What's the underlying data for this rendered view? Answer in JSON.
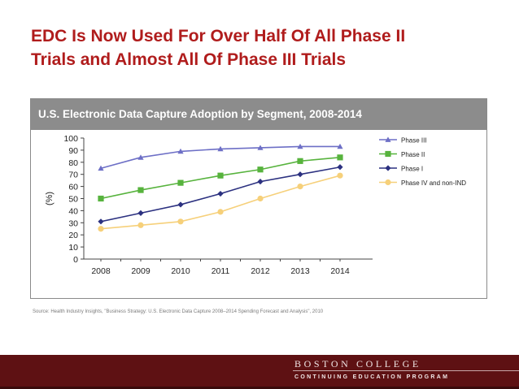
{
  "slide": {
    "title_line1": "EDC Is Now Used For Over Half Of All Phase II",
    "title_line2": "Trials and Almost All Of Phase III Trials",
    "source": "Source: Health Industry Insights, \"Business Strategy: U.S. Electronic Data Capture 2008–2014 Spending Forecast and Analysis\", 2010",
    "footer_name": "BOSTON COLLEGE",
    "footer_program": "CONTINUING EDUCATION PROGRAM"
  },
  "colors": {
    "title": "#b01c1c",
    "header_bg": "#8c8c8c",
    "footer_bg": "#5e1113"
  },
  "chart_data": {
    "type": "line",
    "title": "U.S. Electronic Data Capture Adoption by Segment, 2008-2014",
    "xlabel": "",
    "ylabel": "(%)",
    "ylim": [
      0,
      100
    ],
    "yticks": [
      0,
      10,
      20,
      30,
      40,
      50,
      60,
      70,
      80,
      90,
      100
    ],
    "categories": [
      "2008",
      "2009",
      "2010",
      "2011",
      "2012",
      "2013",
      "2014"
    ],
    "grid": false,
    "legend_position": "right",
    "series": [
      {
        "name": "Phase III",
        "color": "#6d6fc6",
        "marker": "triangle",
        "values": [
          75,
          84,
          89,
          91,
          92,
          93,
          93
        ]
      },
      {
        "name": "Phase II",
        "color": "#57b33d",
        "marker": "square",
        "values": [
          50,
          57,
          63,
          69,
          74,
          81,
          84
        ]
      },
      {
        "name": "Phase I",
        "color": "#2c3180",
        "marker": "diamond",
        "values": [
          31,
          38,
          45,
          54,
          64,
          70,
          76
        ]
      },
      {
        "name": "Phase IV and non-IND",
        "color": "#f6d07a",
        "marker": "circle",
        "values": [
          25,
          28,
          31,
          39,
          50,
          60,
          69
        ]
      }
    ]
  }
}
